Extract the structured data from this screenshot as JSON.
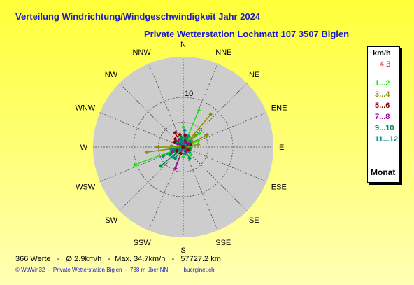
{
  "header": {
    "title": "Verteilung Windrichtung/Windgeschwindigkeit  Jahr 2024",
    "subtitle": "Private Wetterstation Lochmatt 107 3507 Biglen"
  },
  "legend": {
    "header": "km/h",
    "radius_max": "4.3",
    "footer": "Monat",
    "entries": [
      {
        "label": "1...2",
        "color": "#14e614"
      },
      {
        "label": "3...4",
        "color": "#8c8c00"
      },
      {
        "label": "5...6",
        "color": "#8c0000"
      },
      {
        "label": "7...8",
        "color": "#a000a0"
      },
      {
        "label": "9...10",
        "color": "#008c50"
      },
      {
        "label": "11...12",
        "color": "#008c96"
      }
    ]
  },
  "footer": {
    "stats": "366 Werte   -   Ø 2.9km/h   -  Max. 34.7km/h   -   57727.2 km",
    "credit": "© WsWin32  -  Private Wetterstation Biglen  -  788 m über NN          buerginet.ch"
  },
  "chart_data": {
    "type": "scatter",
    "subtype": "polar-wind-rose",
    "directions": [
      "N",
      "NNE",
      "NE",
      "ENE",
      "E",
      "ESE",
      "SE",
      "SSE",
      "S",
      "SSW",
      "SW",
      "WSW",
      "W",
      "WNW",
      "NW",
      "NNW"
    ],
    "rings": [
      0,
      5,
      10
    ],
    "ring_labels": [
      "10"
    ],
    "grid": true,
    "series": [
      {
        "name": "1...2",
        "color": "#14e614",
        "points": [
          {
            "dir": 23,
            "r": 8.0
          },
          {
            "dir": 50,
            "r": 4.3
          },
          {
            "dir": 0,
            "r": 4.0
          },
          {
            "dir": 68,
            "r": 3.3
          },
          {
            "dir": 30,
            "r": 2.4
          },
          {
            "dir": 180,
            "r": 2.0
          },
          {
            "dir": 250,
            "r": 10.4
          },
          {
            "dir": 240,
            "r": 3.2
          },
          {
            "dir": 135,
            "r": 2.2
          },
          {
            "dir": 90,
            "r": 1.6
          },
          {
            "dir": 160,
            "r": 1.5
          },
          {
            "dir": 40,
            "r": 1.8
          }
        ]
      },
      {
        "name": "3...4",
        "color": "#8c8c00",
        "points": [
          {
            "dir": 40,
            "r": 8.6
          },
          {
            "dir": 63,
            "r": 5.4
          },
          {
            "dir": 80,
            "r": 3.1
          },
          {
            "dir": 270,
            "r": 5.3
          },
          {
            "dir": 262,
            "r": 7.4
          },
          {
            "dir": 45,
            "r": 3.4
          },
          {
            "dir": 55,
            "r": 2.1
          },
          {
            "dir": 275,
            "r": 2.4
          },
          {
            "dir": 110,
            "r": 1.5
          },
          {
            "dir": 200,
            "r": 1.3
          },
          {
            "dir": 30,
            "r": 1.6
          }
        ]
      },
      {
        "name": "5...6",
        "color": "#8c0000",
        "points": [
          {
            "dir": 330,
            "r": 3.3
          },
          {
            "dir": 345,
            "r": 2.6
          },
          {
            "dir": 315,
            "r": 2.3
          },
          {
            "dir": 10,
            "r": 2.4
          },
          {
            "dir": 300,
            "r": 2.0
          },
          {
            "dir": 200,
            "r": 1.4
          },
          {
            "dir": 240,
            "r": 1.5
          },
          {
            "dir": 70,
            "r": 1.6
          },
          {
            "dir": 120,
            "r": 1.2
          },
          {
            "dir": 20,
            "r": 1.3
          }
        ]
      },
      {
        "name": "7...8",
        "color": "#a000a0",
        "points": [
          {
            "dir": 200,
            "r": 4.6
          },
          {
            "dir": 330,
            "r": 1.6
          },
          {
            "dir": 60,
            "r": 1.2
          },
          {
            "dir": 250,
            "r": 2.4
          },
          {
            "dir": 300,
            "r": 1.3
          },
          {
            "dir": 150,
            "r": 1.0
          },
          {
            "dir": 30,
            "r": 1.1
          }
        ]
      },
      {
        "name": "9...10",
        "color": "#008c50",
        "points": [
          {
            "dir": 230,
            "r": 5.9
          },
          {
            "dir": 240,
            "r": 3.0
          },
          {
            "dir": 215,
            "r": 2.8
          },
          {
            "dir": 150,
            "r": 2.6
          },
          {
            "dir": 350,
            "r": 2.0
          },
          {
            "dir": 20,
            "r": 1.8
          },
          {
            "dir": 310,
            "r": 1.5
          },
          {
            "dir": 100,
            "r": 1.4
          },
          {
            "dir": 255,
            "r": 1.9
          }
        ]
      },
      {
        "name": "11...12",
        "color": "#008c96",
        "points": [
          {
            "dir": 245,
            "r": 4.5
          },
          {
            "dir": 5,
            "r": 3.4
          },
          {
            "dir": 25,
            "r": 2.4
          },
          {
            "dir": 225,
            "r": 2.9
          },
          {
            "dir": 260,
            "r": 2.5
          },
          {
            "dir": 50,
            "r": 1.8
          },
          {
            "dir": 130,
            "r": 1.6
          },
          {
            "dir": 165,
            "r": 1.4
          },
          {
            "dir": 335,
            "r": 1.3
          }
        ]
      }
    ]
  }
}
